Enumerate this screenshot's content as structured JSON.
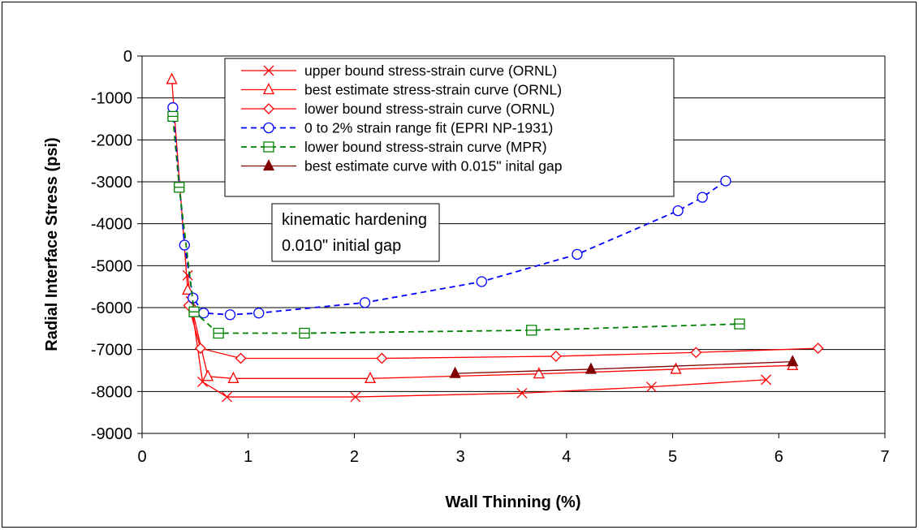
{
  "chart_data": {
    "type": "line",
    "xlabel": "Wall Thinning (%)",
    "ylabel": "Radial Interface Stress (psi)",
    "xlim": [
      0,
      7
    ],
    "ylim": [
      -9000,
      0
    ],
    "x_ticks": [
      0,
      1,
      2,
      3,
      4,
      5,
      6,
      7
    ],
    "y_ticks": [
      0,
      -1000,
      -2000,
      -3000,
      -4000,
      -5000,
      -6000,
      -7000,
      -8000,
      -9000
    ],
    "grid": "horizontal",
    "legend_position": "top-center",
    "annotation": [
      "kinematic hardening",
      "0.010\" initial gap"
    ],
    "series": [
      {
        "name": "upper bound stress-strain curve (ORNL)",
        "color": "#ff0000",
        "dash": "solid",
        "marker": "x",
        "x": [
          0.43,
          0.46,
          0.57,
          0.8,
          2.01,
          3.58,
          4.8,
          5.88
        ],
        "y": [
          -5230,
          -5850,
          -7770,
          -8130,
          -8130,
          -8040,
          -7890,
          -7720
        ]
      },
      {
        "name": "best estimate stress-strain curve (ORNL)",
        "color": "#ff0000",
        "dash": "solid",
        "marker": "triangle-open",
        "x": [
          0.28,
          0.43,
          0.62,
          0.86,
          2.15,
          3.74,
          5.03,
          6.13
        ],
        "y": [
          -560,
          -5580,
          -7640,
          -7690,
          -7690,
          -7580,
          -7470,
          -7380
        ]
      },
      {
        "name": "lower bound stress-strain curve (ORNL)",
        "color": "#ff0000",
        "dash": "solid",
        "marker": "diamond-open",
        "x": [
          0.44,
          0.55,
          0.93,
          2.26,
          3.9,
          5.22,
          6.37
        ],
        "y": [
          -5950,
          -6970,
          -7210,
          -7210,
          -7160,
          -7070,
          -6970
        ]
      },
      {
        "name": "0 to 2% strain range fit (EPRI NP-1931)",
        "color": "#0000ff",
        "dash": "dashed",
        "marker": "circle-open",
        "x": [
          0.29,
          0.4,
          0.48,
          0.58,
          0.83,
          1.1,
          2.1,
          3.2,
          4.1,
          5.05,
          5.28,
          5.5
        ],
        "y": [
          -1230,
          -4510,
          -5770,
          -6130,
          -6170,
          -6130,
          -5880,
          -5380,
          -4730,
          -3690,
          -3370,
          -2980
        ]
      },
      {
        "name": "lower bound stress-strain curve (MPR)",
        "color": "#008000",
        "dash": "dashed",
        "marker": "square-open",
        "x": [
          0.29,
          0.35,
          0.49,
          0.72,
          1.53,
          3.67,
          5.63
        ],
        "y": [
          -1440,
          -3130,
          -6100,
          -6610,
          -6610,
          -6540,
          -6390
        ]
      },
      {
        "name": "best estimate curve with 0.015\" inital gap",
        "color": "#800000",
        "dash": "solid",
        "marker": "triangle-filled",
        "x": [
          2.95,
          4.23,
          6.13
        ],
        "y": [
          -7570,
          -7470,
          -7290
        ]
      }
    ]
  }
}
